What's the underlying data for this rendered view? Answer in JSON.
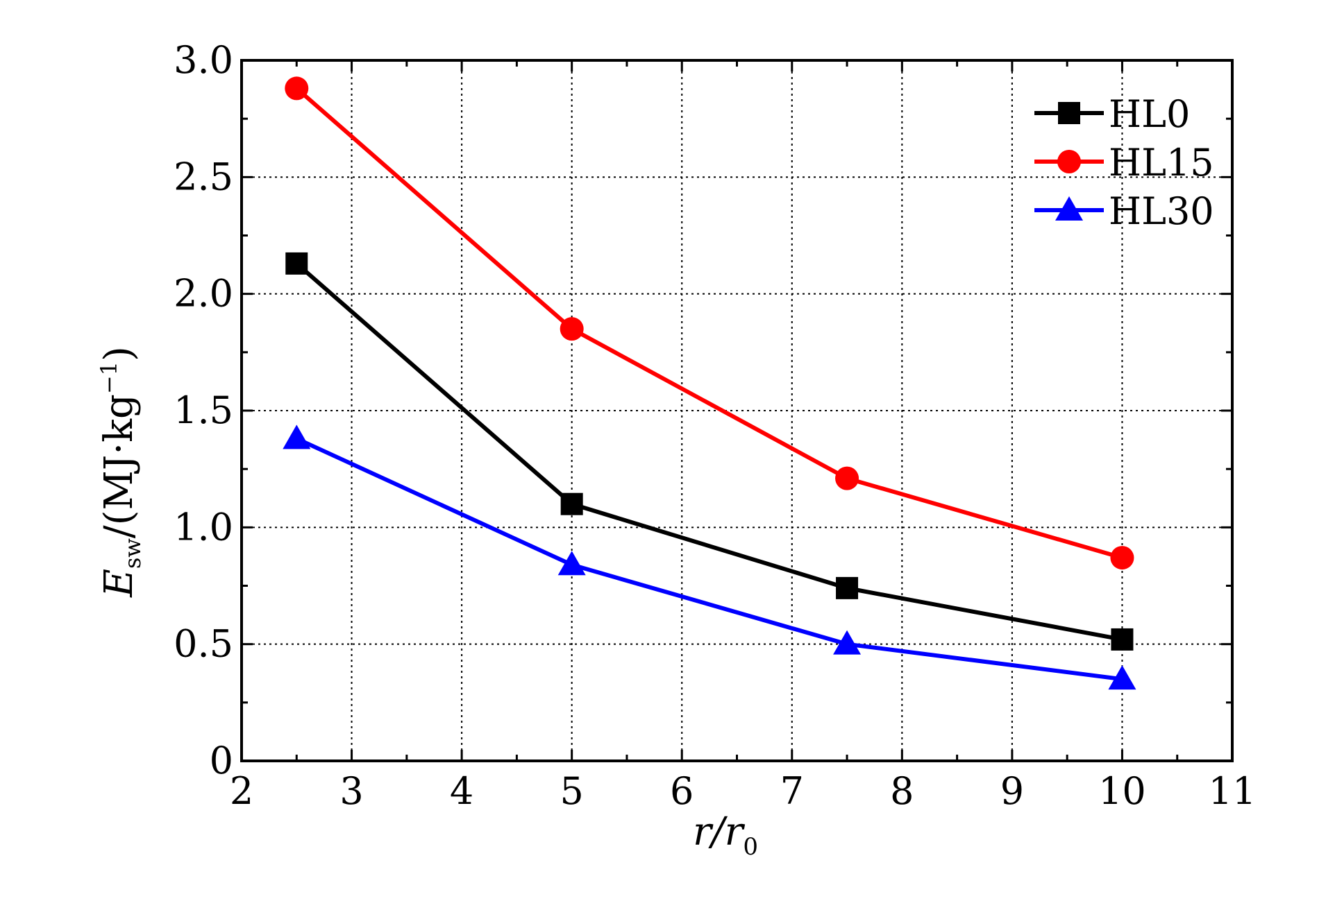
{
  "chart_data": {
    "type": "line",
    "title": "",
    "xlabel": {
      "main": "r/r",
      "sub": "0"
    },
    "ylabel": {
      "main": "E",
      "sub": "sw",
      "unit": "/(MJ·kg",
      "sup": "−1",
      "close": ")"
    },
    "xlim": [
      2,
      11
    ],
    "ylim": [
      0,
      3.0
    ],
    "x_ticks": [
      "2",
      "3",
      "4",
      "5",
      "6",
      "7",
      "8",
      "9",
      "10",
      "11"
    ],
    "y_ticks": [
      "0",
      "0.5",
      "1.0",
      "1.5",
      "2.0",
      "2.5",
      "3.0"
    ],
    "grid": true,
    "legend_position": "top-right",
    "x": [
      2.5,
      5,
      7.5,
      10
    ],
    "series": [
      {
        "name": "HL0",
        "color": "#000000",
        "marker": "square",
        "values": [
          2.13,
          1.1,
          0.74,
          0.52
        ]
      },
      {
        "name": "HL15",
        "color": "#ff0000",
        "marker": "circle",
        "values": [
          2.88,
          1.85,
          1.21,
          0.87
        ]
      },
      {
        "name": "HL30",
        "color": "#0000ff",
        "marker": "triangle",
        "values": [
          1.38,
          0.84,
          0.5,
          0.35
        ]
      }
    ]
  }
}
